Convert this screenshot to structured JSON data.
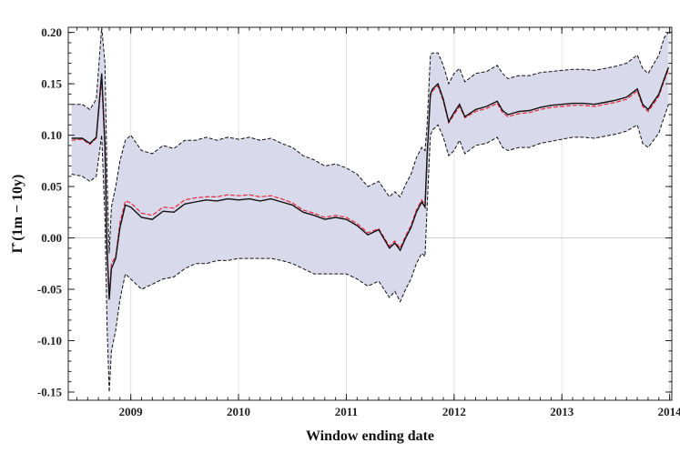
{
  "chart_data": {
    "type": "line",
    "title": "",
    "xlabel": "Window ending date",
    "ylabel": "Γ̂ (1m − 10y)",
    "xlim": [
      2008.42,
      2014.02
    ],
    "ylim": [
      -0.158,
      0.205
    ],
    "x_ticks": [
      2009,
      2010,
      2011,
      2012,
      2013,
      2014
    ],
    "y_ticks": [
      -0.15,
      -0.1,
      -0.05,
      0.0,
      0.05,
      0.1,
      0.15,
      0.2
    ],
    "y_tick_labels": [
      "-0.15",
      "-0.10",
      "-0.05",
      "0.00",
      "0.05",
      "0.10",
      "0.15",
      "0.20"
    ],
    "grid": "vertical lines at year ticks, horizontal line at zero",
    "colors": {
      "estimate": "#111111",
      "alt_estimate": "#e8283c",
      "band_fill": "#d9d9ec",
      "band_edge": "#111111"
    },
    "series": [
      {
        "role": "estimate",
        "x": [
          2008.45,
          2008.55,
          2008.62,
          2008.68,
          2008.73,
          2008.76,
          2008.78,
          2008.8,
          2008.82,
          2008.86,
          2008.9,
          2008.95,
          2009.0,
          2009.1,
          2009.2,
          2009.3,
          2009.4,
          2009.5,
          2009.6,
          2009.7,
          2009.8,
          2009.9,
          2010.0,
          2010.1,
          2010.2,
          2010.3,
          2010.4,
          2010.5,
          2010.6,
          2010.7,
          2010.8,
          2010.9,
          2011.0,
          2011.1,
          2011.2,
          2011.3,
          2011.4,
          2011.45,
          2011.5,
          2011.55,
          2011.6,
          2011.65,
          2011.7,
          2011.73,
          2011.75,
          2011.78,
          2011.8,
          2011.85,
          2011.9,
          2011.95,
          2012.0,
          2012.05,
          2012.1,
          2012.2,
          2012.3,
          2012.4,
          2012.45,
          2012.5,
          2012.6,
          2012.7,
          2012.8,
          2012.9,
          2013.0,
          2013.1,
          2013.2,
          2013.3,
          2013.4,
          2013.5,
          2013.6,
          2013.7,
          2013.75,
          2013.8,
          2013.9,
          2013.95,
          2013.99
        ],
        "y": [
          0.097,
          0.097,
          0.092,
          0.098,
          0.16,
          0.09,
          -0.01,
          -0.06,
          -0.03,
          -0.02,
          0.01,
          0.032,
          0.03,
          0.02,
          0.018,
          0.026,
          0.025,
          0.033,
          0.035,
          0.037,
          0.036,
          0.038,
          0.037,
          0.038,
          0.036,
          0.038,
          0.035,
          0.032,
          0.025,
          0.022,
          0.018,
          0.02,
          0.018,
          0.012,
          0.003,
          0.008,
          -0.01,
          -0.005,
          -0.012,
          0.0,
          0.01,
          0.025,
          0.035,
          0.03,
          0.08,
          0.14,
          0.145,
          0.15,
          0.135,
          0.113,
          0.122,
          0.13,
          0.118,
          0.125,
          0.128,
          0.133,
          0.124,
          0.12,
          0.123,
          0.124,
          0.127,
          0.129,
          0.13,
          0.131,
          0.131,
          0.13,
          0.132,
          0.134,
          0.137,
          0.145,
          0.13,
          0.125,
          0.14,
          0.155,
          0.166
        ]
      },
      {
        "role": "alt_estimate",
        "x": [
          2008.45,
          2008.55,
          2008.62,
          2008.68,
          2008.73,
          2008.76,
          2008.78,
          2008.8,
          2008.82,
          2008.86,
          2008.9,
          2008.95,
          2009.0,
          2009.1,
          2009.2,
          2009.3,
          2009.4,
          2009.5,
          2009.6,
          2009.7,
          2009.8,
          2009.9,
          2010.0,
          2010.1,
          2010.2,
          2010.3,
          2010.4,
          2010.5,
          2010.6,
          2010.7,
          2010.8,
          2010.9,
          2011.0,
          2011.1,
          2011.2,
          2011.3,
          2011.4,
          2011.45,
          2011.5,
          2011.55,
          2011.6,
          2011.65,
          2011.7,
          2011.73,
          2011.75,
          2011.78,
          2011.8,
          2011.85,
          2011.9,
          2011.95,
          2012.0,
          2012.05,
          2012.1,
          2012.2,
          2012.3,
          2012.4,
          2012.45,
          2012.5,
          2012.6,
          2012.7,
          2012.8,
          2012.9,
          2013.0,
          2013.1,
          2013.2,
          2013.3,
          2013.4,
          2013.5,
          2013.6,
          2013.7,
          2013.75,
          2013.8,
          2013.9,
          2013.95,
          2013.99
        ],
        "y": [
          0.095,
          0.096,
          0.091,
          0.097,
          0.155,
          0.085,
          -0.015,
          -0.055,
          -0.025,
          -0.018,
          0.015,
          0.036,
          0.034,
          0.024,
          0.022,
          0.03,
          0.029,
          0.037,
          0.039,
          0.04,
          0.04,
          0.042,
          0.041,
          0.042,
          0.04,
          0.041,
          0.038,
          0.034,
          0.027,
          0.024,
          0.02,
          0.022,
          0.02,
          0.014,
          0.005,
          0.009,
          -0.008,
          -0.003,
          -0.01,
          0.002,
          0.012,
          0.027,
          0.037,
          0.032,
          0.082,
          0.138,
          0.143,
          0.148,
          0.133,
          0.112,
          0.12,
          0.128,
          0.117,
          0.123,
          0.126,
          0.131,
          0.122,
          0.118,
          0.121,
          0.122,
          0.125,
          0.127,
          0.128,
          0.129,
          0.129,
          0.128,
          0.13,
          0.132,
          0.135,
          0.143,
          0.128,
          0.123,
          0.138,
          0.153,
          0.164
        ]
      }
    ],
    "band": {
      "upper": [
        0.13,
        0.13,
        0.125,
        0.135,
        0.205,
        0.17,
        0.06,
        -0.015,
        0.03,
        0.05,
        0.075,
        0.095,
        0.1,
        0.085,
        0.082,
        0.09,
        0.087,
        0.095,
        0.095,
        0.098,
        0.095,
        0.098,
        0.096,
        0.098,
        0.095,
        0.097,
        0.092,
        0.088,
        0.08,
        0.076,
        0.07,
        0.072,
        0.068,
        0.062,
        0.05,
        0.055,
        0.04,
        0.045,
        0.04,
        0.052,
        0.062,
        0.078,
        0.088,
        0.085,
        0.11,
        0.178,
        0.18,
        0.18,
        0.168,
        0.15,
        0.16,
        0.165,
        0.152,
        0.16,
        0.162,
        0.168,
        0.16,
        0.155,
        0.158,
        0.158,
        0.161,
        0.162,
        0.163,
        0.164,
        0.164,
        0.163,
        0.165,
        0.167,
        0.17,
        0.178,
        0.165,
        0.16,
        0.178,
        0.195,
        0.2
      ],
      "lower": [
        0.062,
        0.06,
        0.055,
        0.06,
        0.1,
        0.02,
        -0.085,
        -0.15,
        -0.11,
        -0.09,
        -0.06,
        -0.035,
        -0.04,
        -0.05,
        -0.045,
        -0.04,
        -0.038,
        -0.03,
        -0.025,
        -0.025,
        -0.022,
        -0.022,
        -0.02,
        -0.02,
        -0.02,
        -0.02,
        -0.022,
        -0.025,
        -0.03,
        -0.035,
        -0.035,
        -0.035,
        -0.035,
        -0.04,
        -0.047,
        -0.042,
        -0.058,
        -0.052,
        -0.062,
        -0.05,
        -0.04,
        -0.025,
        -0.015,
        -0.018,
        0.03,
        0.1,
        0.105,
        0.11,
        0.098,
        0.08,
        0.085,
        0.095,
        0.082,
        0.09,
        0.092,
        0.098,
        0.088,
        0.085,
        0.088,
        0.088,
        0.092,
        0.094,
        0.096,
        0.098,
        0.098,
        0.097,
        0.099,
        0.101,
        0.104,
        0.11,
        0.092,
        0.088,
        0.102,
        0.118,
        0.13
      ]
    }
  }
}
